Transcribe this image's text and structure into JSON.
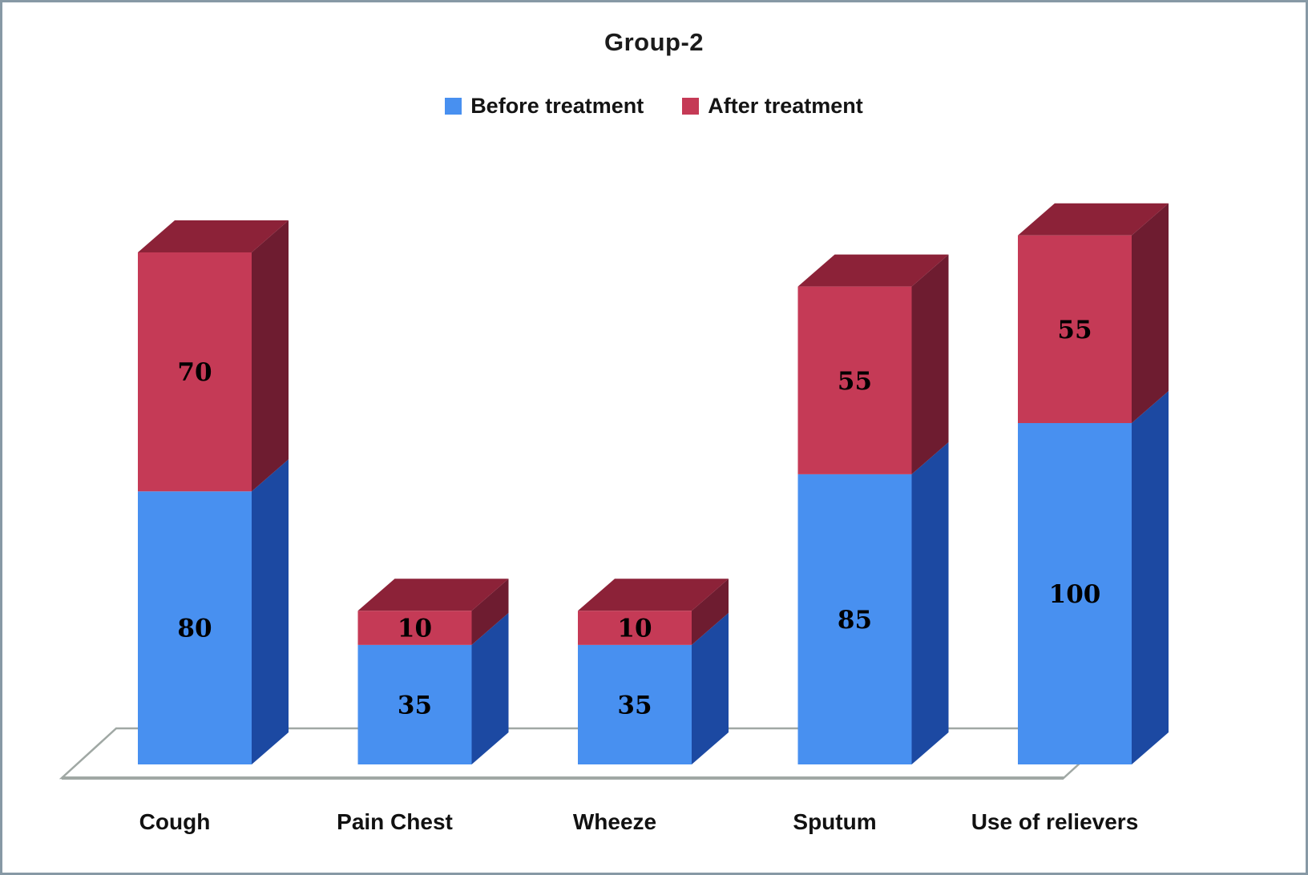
{
  "title": {
    "text": "Group-2"
  },
  "legend": {
    "items": [
      {
        "label": "Before treatment",
        "color": "#4890F0"
      },
      {
        "label": "After treatment",
        "color": "#C53A56"
      }
    ]
  },
  "chart_data": {
    "type": "bar",
    "subtype": "3d-stacked-column",
    "title": "Group-2",
    "categories": [
      "Cough",
      "Pain Chest",
      "Wheeze",
      "Sputum",
      "Use of relievers"
    ],
    "series": [
      {
        "name": "Before treatment",
        "values": [
          80,
          35,
          35,
          85,
          100
        ],
        "color": "#4890F0",
        "side_color": "#1C49A2"
      },
      {
        "name": "After treatment",
        "values": [
          70,
          10,
          10,
          55,
          55
        ],
        "color": "#C53A56",
        "side_color": "#6E1C30",
        "top_color": "#8C2238"
      }
    ],
    "value_axis_visible": false,
    "grid": false,
    "legend_position": "top",
    "floor_color": "#A0A8A4",
    "label_color": "#000000",
    "data_labels": "inside-center"
  }
}
